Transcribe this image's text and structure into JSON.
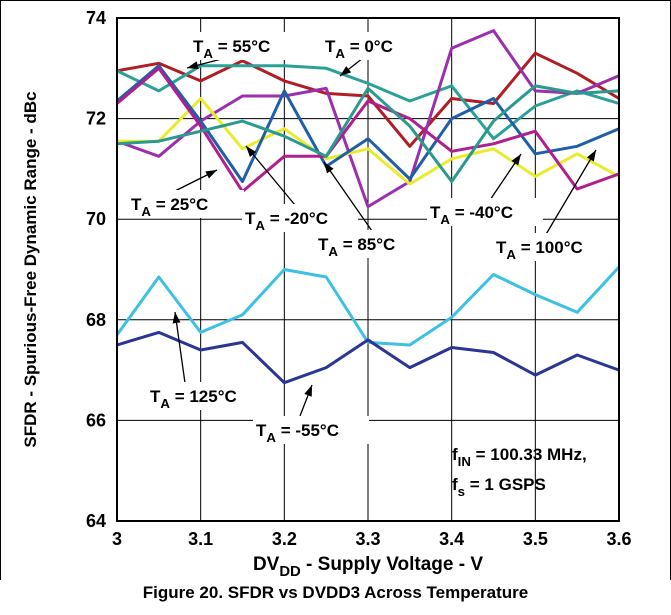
{
  "caption": "Figure 20. SFDR vs DVDD3 Across Temperature",
  "chart_data": {
    "type": "line",
    "xlabel": {
      "main": "DV",
      "sub": "DD",
      "rest": " - Supply Voltage - V"
    },
    "ylabel": "SFDR - Spurious-Free Dynamic Range - dBc",
    "xlim": [
      3.0,
      3.6
    ],
    "ylim": [
      64,
      74
    ],
    "xticks": [
      "3",
      "3.1",
      "3.2",
      "3.3",
      "3.4",
      "3.5",
      "3.6"
    ],
    "yticks": [
      "64",
      "66",
      "68",
      "70",
      "72",
      "74"
    ],
    "grid": true,
    "x": [
      3.0,
      3.05,
      3.1,
      3.15,
      3.2,
      3.25,
      3.3,
      3.35,
      3.4,
      3.45,
      3.5,
      3.55,
      3.6
    ],
    "series": [
      {
        "name": "55°C",
        "color": "#b01e24",
        "values": [
          72.95,
          73.1,
          72.75,
          73.15,
          72.75,
          72.5,
          72.45,
          71.45,
          72.4,
          72.3,
          73.3,
          72.9,
          72.4
        ]
      },
      {
        "name": "0°C",
        "color": "#2aa198",
        "values": [
          72.95,
          72.55,
          73.05,
          73.05,
          73.05,
          73.0,
          72.7,
          72.35,
          72.65,
          71.6,
          72.25,
          72.55,
          72.3
        ]
      },
      {
        "name": "85°C",
        "color": "#9b2fae",
        "values": [
          71.55,
          71.25,
          71.95,
          72.45,
          72.45,
          72.6,
          70.25,
          70.75,
          73.4,
          73.75,
          72.55,
          72.5,
          72.85
        ]
      },
      {
        "name": "25°C",
        "color": "#e8ec2a",
        "values": [
          71.55,
          71.55,
          72.4,
          71.4,
          71.8,
          71.2,
          71.4,
          70.7,
          71.2,
          71.4,
          70.85,
          71.3,
          70.85
        ]
      },
      {
        "name": "-20°C",
        "color": "#1f5fa8",
        "values": [
          72.35,
          73.05,
          71.95,
          70.75,
          72.55,
          71.05,
          71.6,
          70.8,
          72.0,
          72.4,
          71.3,
          71.45,
          71.8
        ]
      },
      {
        "name": "-40°C",
        "color": "#b01e90",
        "values": [
          72.3,
          73.0,
          71.85,
          70.55,
          71.25,
          71.25,
          72.35,
          72.0,
          71.35,
          71.5,
          71.75,
          70.6,
          70.9
        ]
      },
      {
        "name": "100°C",
        "color": "#2a9a8e",
        "values": [
          71.5,
          71.55,
          71.75,
          71.95,
          71.65,
          71.25,
          72.6,
          71.85,
          70.75,
          71.95,
          72.65,
          72.5,
          72.55
        ]
      },
      {
        "name": "125°C",
        "color": "#3cc0e4",
        "values": [
          67.7,
          68.85,
          67.75,
          68.1,
          69.0,
          68.85,
          67.55,
          67.5,
          68.05,
          68.9,
          68.5,
          68.15,
          69.05
        ]
      },
      {
        "name": "-55°C",
        "color": "#2b3593",
        "values": [
          67.5,
          67.75,
          67.4,
          67.55,
          66.75,
          67.05,
          67.6,
          67.05,
          67.45,
          67.35,
          66.9,
          67.3,
          67.0
        ]
      }
    ],
    "annotations": [
      {
        "text": "T",
        "sub": "A",
        "rest": " = 55°C"
      },
      {
        "text": "T",
        "sub": "A",
        "rest": " = 0°C"
      },
      {
        "text": "T",
        "sub": "A",
        "rest": " = 25°C"
      },
      {
        "text": "T",
        "sub": "A",
        "rest": " = -20°C"
      },
      {
        "text": "T",
        "sub": "A",
        "rest": " = 85°C"
      },
      {
        "text": "T",
        "sub": "A",
        "rest": " = -40°C"
      },
      {
        "text": "T",
        "sub": "A",
        "rest": " = 100°C"
      },
      {
        "text": "T",
        "sub": "A",
        "rest": " = 125°C"
      },
      {
        "text": "T",
        "sub": "A",
        "rest": " = -55°C"
      }
    ],
    "condition": {
      "line1": {
        "text": "f",
        "sub": "IN",
        "rest": " = 100.33 MHz,"
      },
      "line2": {
        "text": "f",
        "sub": "s",
        "rest": " = 1 GSPS"
      }
    }
  }
}
